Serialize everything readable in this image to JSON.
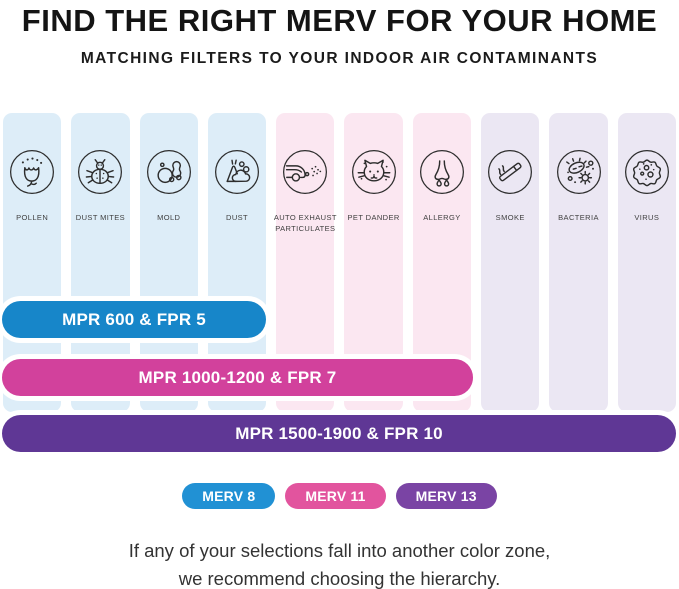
{
  "header": {
    "title": "FIND THE RIGHT MERV FOR YOUR HOME",
    "subtitle": "MATCHING FILTERS TO YOUR INDOOR AIR CONTAMINANTS"
  },
  "columns": [
    {
      "label": "POLLEN",
      "icon": "pollen-icon",
      "bg": "#ddedf8"
    },
    {
      "label": "DUST MITES",
      "icon": "dust-mites-icon",
      "bg": "#ddedf8"
    },
    {
      "label": "MOLD",
      "icon": "mold-icon",
      "bg": "#ddedf8"
    },
    {
      "label": "DUST",
      "icon": "dust-icon",
      "bg": "#ddedf8"
    },
    {
      "label": "AUTO EXHAUST PARTICULATES",
      "icon": "auto-exhaust-icon",
      "bg": "#fbe7f1"
    },
    {
      "label": "PET DANDER",
      "icon": "pet-dander-icon",
      "bg": "#fbe7f1"
    },
    {
      "label": "ALLERGY",
      "icon": "allergy-icon",
      "bg": "#fbe7f1"
    },
    {
      "label": "SMOKE",
      "icon": "smoke-icon",
      "bg": "#ebe7f3"
    },
    {
      "label": "BACTERIA",
      "icon": "bacteria-icon",
      "bg": "#ebe7f3"
    },
    {
      "label": "VIRUS",
      "icon": "virus-icon",
      "bg": "#ebe7f3"
    }
  ],
  "bars": [
    {
      "label": "MPR 600 & FPR 5",
      "color": "#1786c9",
      "covers_first_n_columns": 4
    },
    {
      "label": "MPR 1000-1200 & FPR 7",
      "color": "#d2419c",
      "covers_first_n_columns": 7
    },
    {
      "label": "MPR 1500-1900 & FPR 10",
      "color": "#5f3795",
      "covers_first_n_columns": 10
    }
  ],
  "badges": [
    {
      "label": "MERV 8",
      "color": "#2191d4"
    },
    {
      "label": "MERV 11",
      "color": "#e2549e"
    },
    {
      "label": "MERV 13",
      "color": "#7a44a4"
    }
  ],
  "footer": {
    "line1": "If any of your selections fall into another color zone,",
    "line2": "we recommend choosing the hierarchy."
  }
}
